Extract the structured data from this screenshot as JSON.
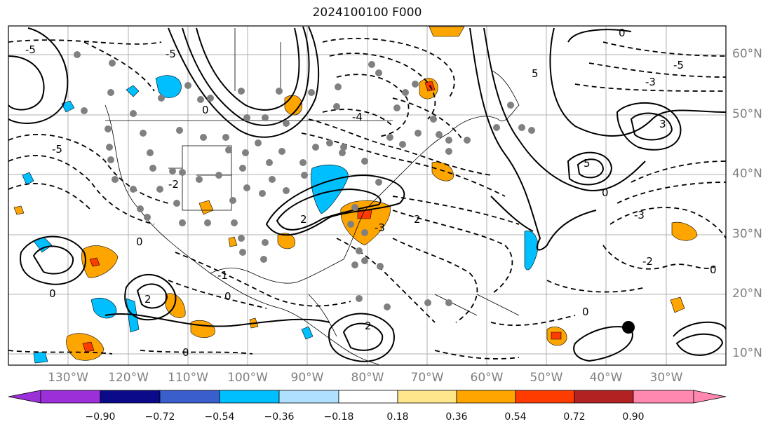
{
  "title": "2024100100 F000",
  "lat_labels": [
    "60°N",
    "50°N",
    "40°N",
    "30°N",
    "20°N",
    "10°N"
  ],
  "lon_labels": [
    "130°W",
    "120°W",
    "110°W",
    "100°W",
    "90°W",
    "80°W",
    "70°W",
    "60°W",
    "50°W",
    "40°W",
    "30°W"
  ],
  "contour_labels": [
    "0",
    "-5",
    "-3",
    "-4",
    "-2",
    "-1",
    "5",
    "4",
    "3",
    "2",
    "1"
  ],
  "colorbar": {
    "ticks": [
      "−0.90",
      "−0.72",
      "−0.54",
      "−0.36",
      "−0.18",
      "0.18",
      "0.36",
      "0.54",
      "0.72",
      "0.90"
    ],
    "colors": [
      "#9b30d8",
      "#0a0a8a",
      "#3a5fcd",
      "#00bfff",
      "#afe0ff",
      "#ffffff",
      "#ffe68a",
      "#ffa500",
      "#ff3c00",
      "#b22222",
      "#ff88b0"
    ]
  },
  "marker": {
    "type": "black-dot",
    "lon": "36°W",
    "lat": "14°N"
  }
}
